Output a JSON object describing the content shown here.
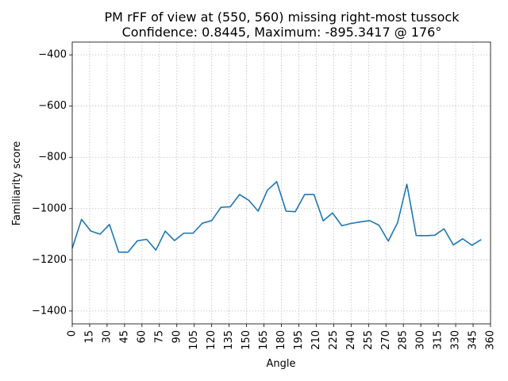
{
  "chart_data": {
    "type": "line",
    "title_line1": "PM rFF of view at (550, 560) missing right-most tussock",
    "title_line2": "Confidence: 0.8445, Maximum: -895.3417 @ 176°",
    "xlabel": "Angle",
    "ylabel": "Familiarity score",
    "xlim": [
      0,
      360
    ],
    "ylim": [
      -1450,
      -350
    ],
    "xticks": [
      0,
      15,
      30,
      45,
      60,
      75,
      90,
      105,
      120,
      135,
      150,
      165,
      180,
      195,
      210,
      225,
      240,
      255,
      270,
      285,
      300,
      315,
      330,
      345,
      360
    ],
    "yticks": [
      -1400,
      -1200,
      -1000,
      -800,
      -600,
      -400
    ],
    "ytick_labels": [
      "−1400",
      "−1200",
      "−1000",
      "−800",
      "−600",
      "−400"
    ],
    "grid": true,
    "line_color": "#1f77b4",
    "series": [
      {
        "x": [
          0,
          8,
          16,
          24,
          32,
          40,
          48,
          56,
          64,
          72,
          80,
          88,
          96,
          104,
          112,
          120,
          128,
          136,
          144,
          152,
          160,
          168,
          176,
          184,
          192,
          200,
          208,
          216,
          224,
          232,
          240,
          248,
          256,
          264,
          272,
          280,
          288,
          296,
          304,
          312,
          320,
          328,
          336,
          344,
          352
        ],
        "values": [
          -1155,
          -1042,
          -1088,
          -1100,
          -1062,
          -1170,
          -1170,
          -1126,
          -1120,
          -1162,
          -1088,
          -1125,
          -1096,
          -1096,
          -1057,
          -1047,
          -995,
          -993,
          -945,
          -968,
          -1010,
          -928,
          -895,
          -1010,
          -1012,
          -945,
          -945,
          -1048,
          -1017,
          -1067,
          -1058,
          -1052,
          -1047,
          -1065,
          -1127,
          -1055,
          -905,
          -1105,
          -1106,
          -1104,
          -1079,
          -1142,
          -1118,
          -1143,
          -1121
        ]
      }
    ]
  }
}
